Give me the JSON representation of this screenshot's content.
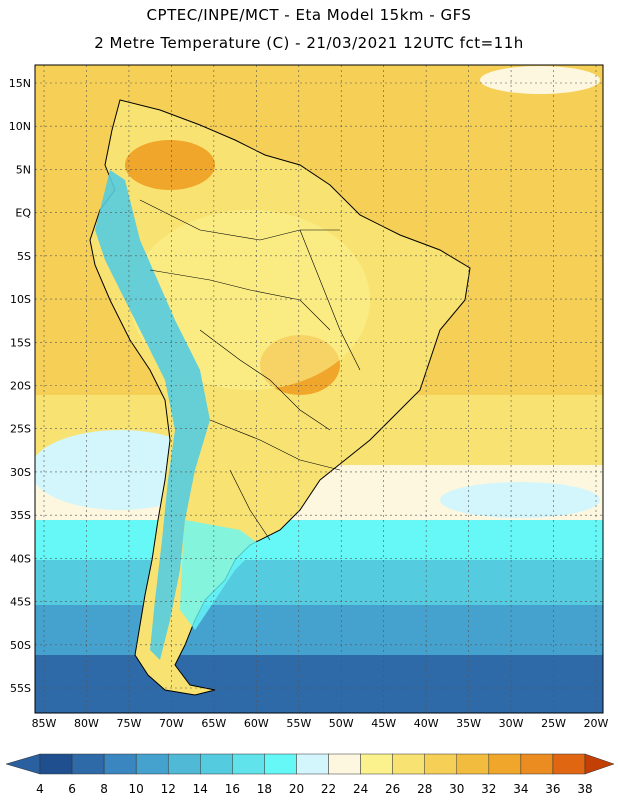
{
  "header": {
    "line1": "CPTEC/INPE/MCT -  Eta Model 15km - GFS",
    "line2": "2 Metre Temperature (C) - 21/03/2021 12UTC fct=11h"
  },
  "axes": {
    "lat_labels": [
      "15N",
      "10N",
      "5N",
      "EQ",
      "5S",
      "10S",
      "15S",
      "20S",
      "25S",
      "30S",
      "35S",
      "40S",
      "45S",
      "50S",
      "55S"
    ],
    "lon_labels": [
      "85W",
      "80W",
      "75W",
      "70W",
      "65W",
      "60W",
      "55W",
      "50W",
      "45W",
      "40W",
      "35W",
      "30W",
      "25W",
      "20W"
    ]
  },
  "colorbar": {
    "labels": [
      "4",
      "6",
      "8",
      "10",
      "12",
      "14",
      "16",
      "18",
      "20",
      "22",
      "24",
      "26",
      "28",
      "30",
      "32",
      "34",
      "36",
      "38"
    ],
    "colors": [
      "#1f4f8f",
      "#2e6aa8",
      "#3a86c0",
      "#45a2cf",
      "#4fb9d6",
      "#55cbe0",
      "#60e3ea",
      "#66f7f7",
      "#d2f6fb",
      "#fdf7e0",
      "#fbf28e",
      "#f8e372",
      "#f6cf56",
      "#f2bd3f",
      "#f0a62a",
      "#eb8c20",
      "#e06612",
      "#c9470a"
    ],
    "low_color": "#2a5fa0",
    "high_color": "#c23f06"
  }
}
